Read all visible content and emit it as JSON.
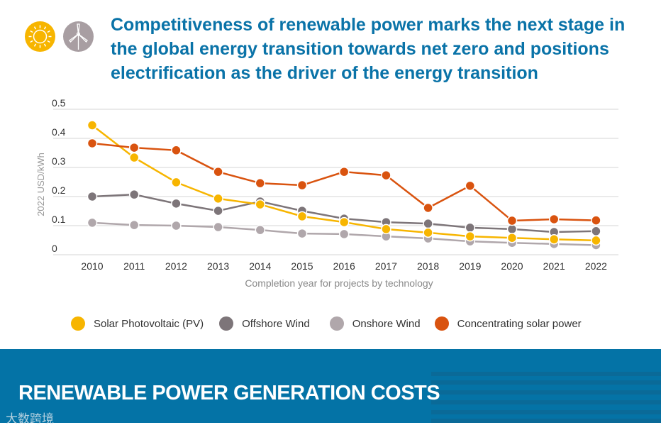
{
  "title": "Competitiveness of renewable power marks the next stage in the global energy transition towards net zero and positions electrification as the driver of the energy transition",
  "icons": [
    "sun-icon",
    "wind-turbine-icon"
  ],
  "banner": {
    "title": "RENEWABLE POWER GENERATION COSTS",
    "watermark": "大数跨境"
  },
  "chart_data": {
    "type": "line",
    "ylabel": "2022 USD/kWh",
    "xlabel": "Completion year for projects by technology",
    "ylim": [
      0,
      0.5
    ],
    "yticks": [
      "0",
      "0.1",
      "0.2",
      "0.3",
      "0.4",
      "0.5"
    ],
    "x": [
      "2010",
      "2011",
      "2012",
      "2013",
      "2014",
      "2015",
      "2016",
      "2017",
      "2018",
      "2019",
      "2020",
      "2021",
      "2022"
    ],
    "legend_position": "bottom",
    "series": [
      {
        "name": "Solar Photovoltaic (PV)",
        "color": "#f7b500",
        "values": [
          0.445,
          0.334,
          0.249,
          0.193,
          0.173,
          0.132,
          0.112,
          0.088,
          0.076,
          0.063,
          0.058,
          0.053,
          0.049
        ]
      },
      {
        "name": "Offshore Wind",
        "color": "#7d7579",
        "values": [
          0.2,
          0.207,
          0.176,
          0.151,
          0.183,
          0.151,
          0.124,
          0.112,
          0.107,
          0.093,
          0.088,
          0.078,
          0.081
        ]
      },
      {
        "name": "Onshore Wind",
        "color": "#b0a7ab",
        "values": [
          0.11,
          0.102,
          0.1,
          0.095,
          0.085,
          0.073,
          0.071,
          0.063,
          0.056,
          0.046,
          0.041,
          0.037,
          0.033
        ]
      },
      {
        "name": "Concentrating solar power",
        "color": "#d9530f",
        "values": [
          0.383,
          0.368,
          0.359,
          0.285,
          0.246,
          0.239,
          0.285,
          0.273,
          0.161,
          0.237,
          0.117,
          0.122,
          0.118
        ]
      }
    ]
  }
}
